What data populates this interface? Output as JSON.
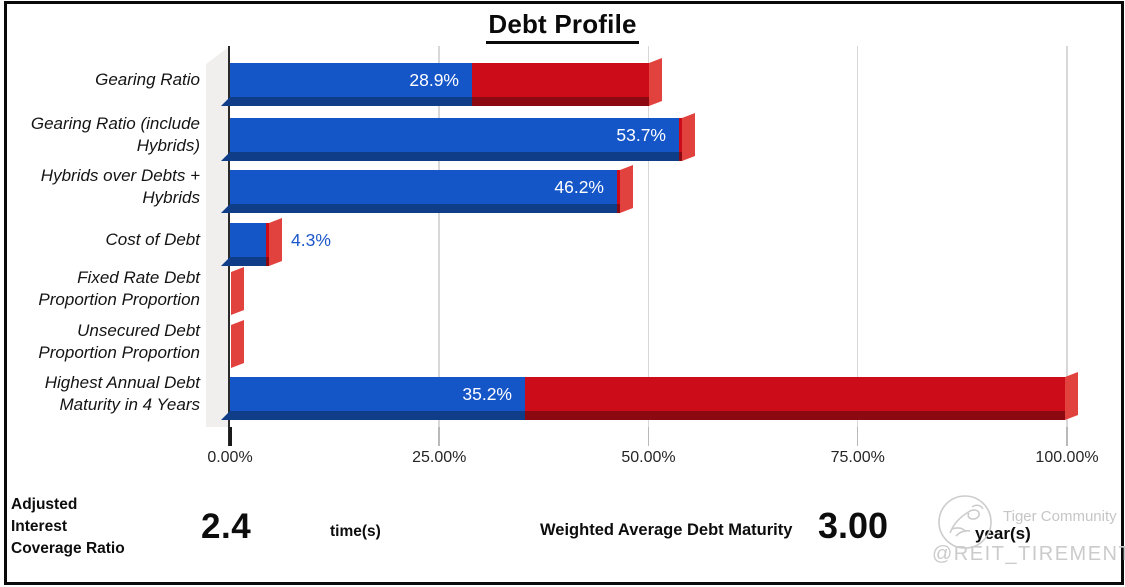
{
  "title": "Debt Profile",
  "chart_data": {
    "type": "bar",
    "orientation": "horizontal",
    "style": "3d-extruded",
    "title": "Debt Profile",
    "xlabel": "",
    "ylabel": "",
    "xlim": [
      0,
      100
    ],
    "x_ticks": [
      "0.00%",
      "25.00%",
      "50.00%",
      "75.00%",
      "100.00%"
    ],
    "x_tick_values": [
      0,
      25,
      50,
      75,
      100
    ],
    "grid": true,
    "legend": false,
    "categories": [
      "Gearing Ratio",
      "Gearing Ratio (include Hybrids)",
      "Hybrids over Debts + Hybrids",
      "Cost of Debt",
      "Fixed Rate Debt Proportion Proportion",
      "Unsecured Debt Proportion Proportion",
      "Highest Annual Debt Maturity in 4 Years"
    ],
    "series": [
      {
        "name": "value",
        "color": "#1455c8",
        "shadow_color": "#0f3d87",
        "values": [
          28.9,
          53.7,
          46.2,
          4.3,
          0,
          0,
          35.2
        ]
      },
      {
        "name": "remainder",
        "color": "#cd0c1a",
        "shadow_color": "#8c0911",
        "cap_color": "#e2423e",
        "values": [
          21.1,
          0.3,
          0.3,
          0.3,
          0.15,
          0.15,
          64.5
        ]
      }
    ],
    "value_labels": [
      {
        "text": "28.9%",
        "placement": "inside",
        "color": "#ffffff"
      },
      {
        "text": "53.7%",
        "placement": "inside",
        "color": "#ffffff"
      },
      {
        "text": "46.2%",
        "placement": "inside",
        "color": "#ffffff"
      },
      {
        "text": "4.3%",
        "placement": "outside",
        "color": "#1b57c9"
      },
      {
        "text": "",
        "placement": "none",
        "color": ""
      },
      {
        "text": "",
        "placement": "none",
        "color": ""
      },
      {
        "text": "35.2%",
        "placement": "inside",
        "color": "#ffffff"
      }
    ]
  },
  "footer": {
    "aicr_label": "Adjusted Interest Coverage Ratio",
    "aicr_value": "2.4",
    "aicr_unit": "time(s)",
    "wadm_label": "Weighted Average Debt Maturity",
    "wadm_value": "3.00",
    "wadm_unit": "year(s)"
  },
  "watermark": {
    "logo": "tiger-community-logo-icon",
    "community": "Tiger Community",
    "handle": "@REIT_TIREMENT"
  },
  "colors": {
    "bar_blue": "#1455c8",
    "bar_blue_dark": "#0f3d87",
    "bar_red": "#cd0c1a",
    "bar_red_dark": "#8c0911",
    "bar_red_cap": "#e2423e",
    "gridline": "#d8d8d8",
    "wall": "#f0efed",
    "border": "#0a0a0a",
    "watermark_gray": "#c9c9c9"
  }
}
